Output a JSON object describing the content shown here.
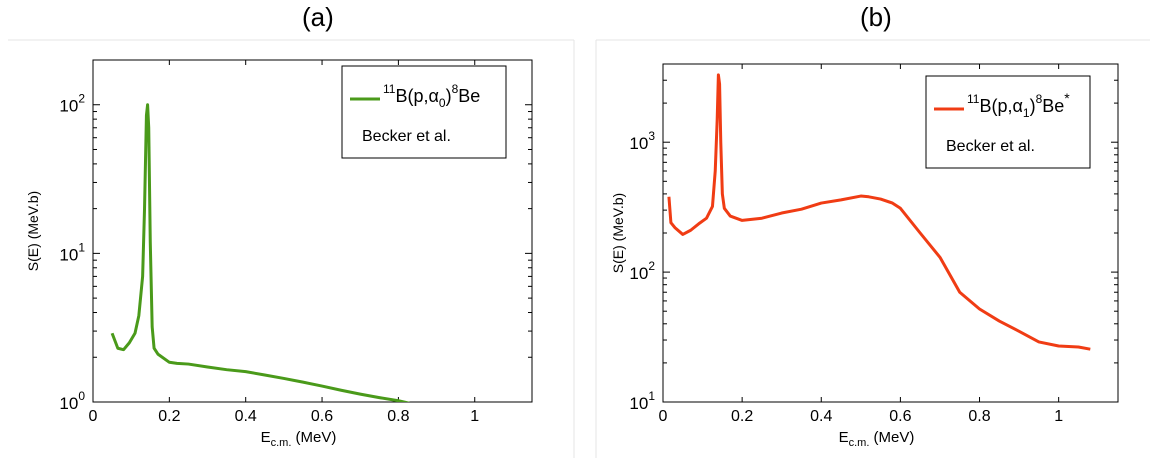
{
  "panels": {
    "a": {
      "label": "(a)"
    },
    "b": {
      "label": "(b)"
    }
  },
  "colors": {
    "a": "#4a9a1a",
    "b": "#f03c14"
  },
  "chart_data": [
    {
      "type": "line",
      "panel": "(a)",
      "xlabel": "E",
      "xlabel_sub": "c.m.",
      "xlabel_unit": "(MeV)",
      "ylabel": "S(E) (MeV.b)",
      "xscale": "linear",
      "yscale": "log",
      "xlim": [
        0,
        1.15
      ],
      "ylim": [
        1,
        200
      ],
      "xticks": [
        0,
        0.2,
        0.4,
        0.6,
        0.8,
        1
      ],
      "xtick_labels": [
        "0",
        "0.2",
        "0.4",
        "0.6",
        "0.8",
        "1"
      ],
      "yticks": [
        1,
        10,
        100
      ],
      "ytick_labels": [
        {
          "base": "10",
          "exp": "0"
        },
        {
          "base": "10",
          "exp": "1"
        },
        {
          "base": "10",
          "exp": "2"
        }
      ],
      "grid": false,
      "legend": {
        "position": "top-right",
        "reaction": {
          "pre": "11",
          "main1": "B(p,",
          "alpha": "α",
          "sub": "0",
          "close": ")",
          "pre2": "8",
          "main2": "Be",
          "star": ""
        },
        "source": "Becker et al."
      },
      "series": [
        {
          "x": [
            0.05,
            0.065,
            0.08,
            0.095,
            0.11,
            0.12,
            0.13,
            0.135,
            0.14,
            0.143,
            0.146,
            0.15,
            0.155,
            0.16,
            0.17,
            0.2,
            0.22,
            0.25,
            0.3,
            0.35,
            0.4,
            0.45,
            0.5,
            0.55,
            0.6,
            0.65,
            0.7,
            0.75,
            0.8,
            0.83
          ],
          "y": [
            2.9,
            2.3,
            2.25,
            2.5,
            2.9,
            3.8,
            7.0,
            20,
            85,
            100,
            70,
            12,
            3.2,
            2.3,
            2.1,
            1.85,
            1.82,
            1.8,
            1.72,
            1.65,
            1.6,
            1.52,
            1.44,
            1.36,
            1.28,
            1.2,
            1.13,
            1.07,
            1.02,
            0.98
          ]
        }
      ]
    },
    {
      "type": "line",
      "panel": "(b)",
      "xlabel": "E",
      "xlabel_sub": "c.m.",
      "xlabel_unit": "(MeV)",
      "ylabel": "S(E) (MeV.b)",
      "xscale": "linear",
      "yscale": "log",
      "xlim": [
        0,
        1.15
      ],
      "ylim": [
        10,
        4000
      ],
      "xticks": [
        0,
        0.2,
        0.4,
        0.6,
        0.8,
        1
      ],
      "xtick_labels": [
        "0",
        "0.2",
        "0.4",
        "0.6",
        "0.8",
        "1"
      ],
      "yticks": [
        10,
        100,
        1000
      ],
      "ytick_labels": [
        {
          "base": "10",
          "exp": "1"
        },
        {
          "base": "10",
          "exp": "2"
        },
        {
          "base": "10",
          "exp": "3"
        }
      ],
      "grid": false,
      "legend": {
        "position": "top-right",
        "reaction": {
          "pre": "11",
          "main1": "B(p,",
          "alpha": "α",
          "sub": "1",
          "close": ")",
          "pre2": "8",
          "main2": "Be",
          "star": "*"
        },
        "source": "Becker et al."
      },
      "series": [
        {
          "x": [
            0.015,
            0.02,
            0.03,
            0.05,
            0.07,
            0.09,
            0.11,
            0.125,
            0.132,
            0.137,
            0.14,
            0.143,
            0.146,
            0.15,
            0.155,
            0.17,
            0.2,
            0.25,
            0.3,
            0.35,
            0.4,
            0.45,
            0.5,
            0.52,
            0.55,
            0.58,
            0.6,
            0.65,
            0.7,
            0.75,
            0.8,
            0.85,
            0.9,
            0.95,
            1.0,
            1.05,
            1.08
          ],
          "y": [
            380,
            240,
            220,
            195,
            210,
            235,
            260,
            320,
            600,
            1500,
            3300,
            2800,
            1000,
            400,
            310,
            270,
            250,
            260,
            285,
            305,
            340,
            360,
            385,
            380,
            365,
            340,
            310,
            200,
            130,
            70,
            52,
            42,
            35,
            29,
            27,
            26.5,
            25.5
          ]
        }
      ]
    }
  ]
}
